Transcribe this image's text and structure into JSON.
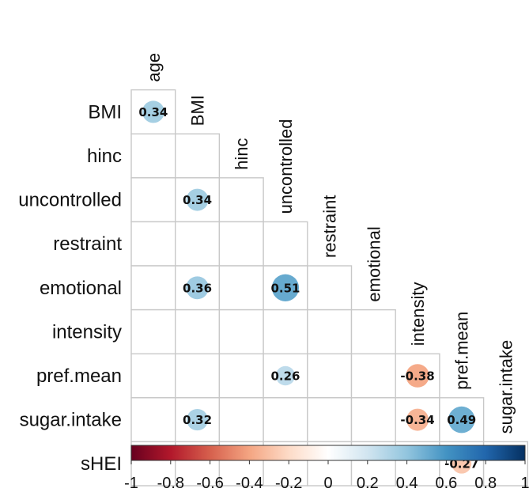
{
  "chart_data": {
    "type": "heatmap",
    "subtype": "correlation-lower-triangle",
    "variables": [
      "age",
      "BMI",
      "hinc",
      "uncontrolled",
      "restraint",
      "emotional",
      "intensity",
      "pref.mean",
      "sugar.intake",
      "sHEI"
    ],
    "row_labels": [
      "BMI",
      "hinc",
      "uncontrolled",
      "restraint",
      "emotional",
      "intensity",
      "pref.mean",
      "sugar.intake",
      "sHEI"
    ],
    "column_labels": [
      "age",
      "BMI",
      "hinc",
      "uncontrolled",
      "restraint",
      "emotional",
      "intensity",
      "pref.mean",
      "sugar.intake"
    ],
    "cells": [
      {
        "row": "BMI",
        "col": "age",
        "value": 0.34,
        "label": "0.34"
      },
      {
        "row": "uncontrolled",
        "col": "BMI",
        "value": 0.34,
        "label": "0.34"
      },
      {
        "row": "emotional",
        "col": "BMI",
        "value": 0.36,
        "label": "0.36"
      },
      {
        "row": "emotional",
        "col": "uncontrolled",
        "value": 0.51,
        "label": "0.51"
      },
      {
        "row": "pref.mean",
        "col": "uncontrolled",
        "value": 0.26,
        "label": "0.26"
      },
      {
        "row": "pref.mean",
        "col": "intensity",
        "value": -0.38,
        "label": "-0.38"
      },
      {
        "row": "sugar.intake",
        "col": "BMI",
        "value": 0.32,
        "label": "0.32"
      },
      {
        "row": "sugar.intake",
        "col": "intensity",
        "value": -0.34,
        "label": "-0.34"
      },
      {
        "row": "sugar.intake",
        "col": "pref.mean",
        "value": 0.49,
        "label": "0.49"
      },
      {
        "row": "sHEI",
        "col": "pref.mean",
        "value": -0.27,
        "label": "-0.27"
      }
    ],
    "colorbar": {
      "range": [
        -1,
        1
      ],
      "ticks": [
        -1,
        -0.8,
        -0.6,
        -0.4,
        -0.2,
        0,
        0.2,
        0.4,
        0.6,
        0.8,
        1
      ],
      "tick_labels": [
        "-1",
        "-0.8",
        "-0.6",
        "-0.4",
        "-0.2",
        "0",
        "0.2",
        "0.4",
        "0.6",
        "0.8",
        "1"
      ],
      "colors": [
        "#67001f",
        "#b2182b",
        "#d6604d",
        "#f4a582",
        "#fddbc7",
        "#ffffff",
        "#d1e5f0",
        "#92c5de",
        "#4393c3",
        "#2166ac",
        "#053061"
      ]
    }
  }
}
